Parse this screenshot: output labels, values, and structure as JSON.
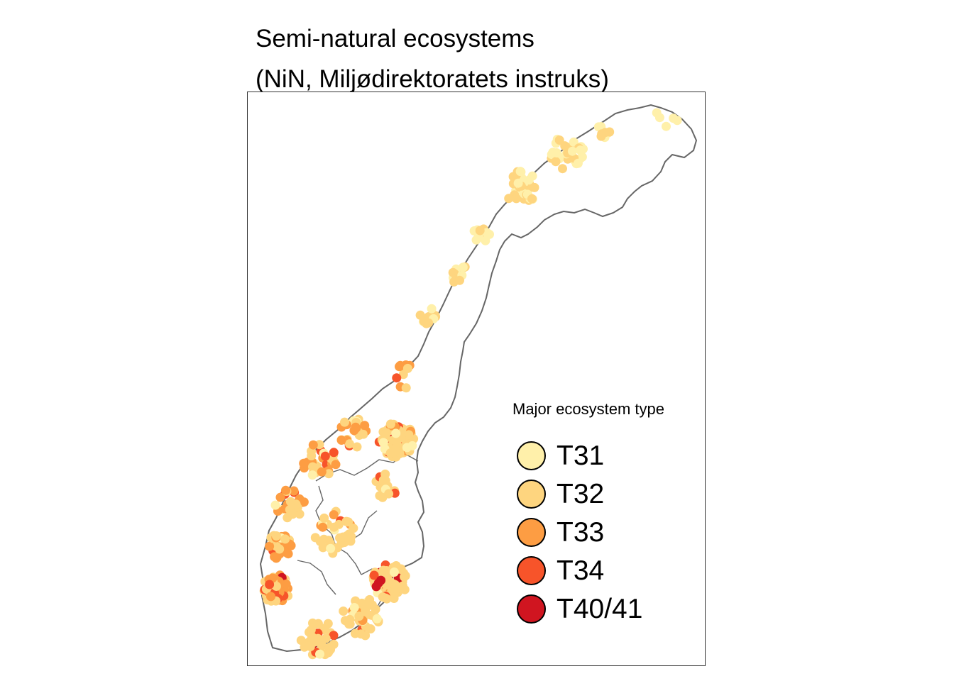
{
  "title": {
    "line1": "Semi-natural ecosystems",
    "line2": "(NiN, Miljødirektoratets instruks)"
  },
  "legend": {
    "title": "Major ecosystem type",
    "items": [
      {
        "label": "T31",
        "color": "#FFF0AA"
      },
      {
        "label": "T32",
        "color": "#FED57F"
      },
      {
        "label": "T33",
        "color": "#FD9D43"
      },
      {
        "label": "T34",
        "color": "#F7542A"
      },
      {
        "label": "T40/41",
        "color": "#D01520"
      }
    ]
  },
  "map": {
    "outline_color": "#666666",
    "region": "Norway"
  }
}
